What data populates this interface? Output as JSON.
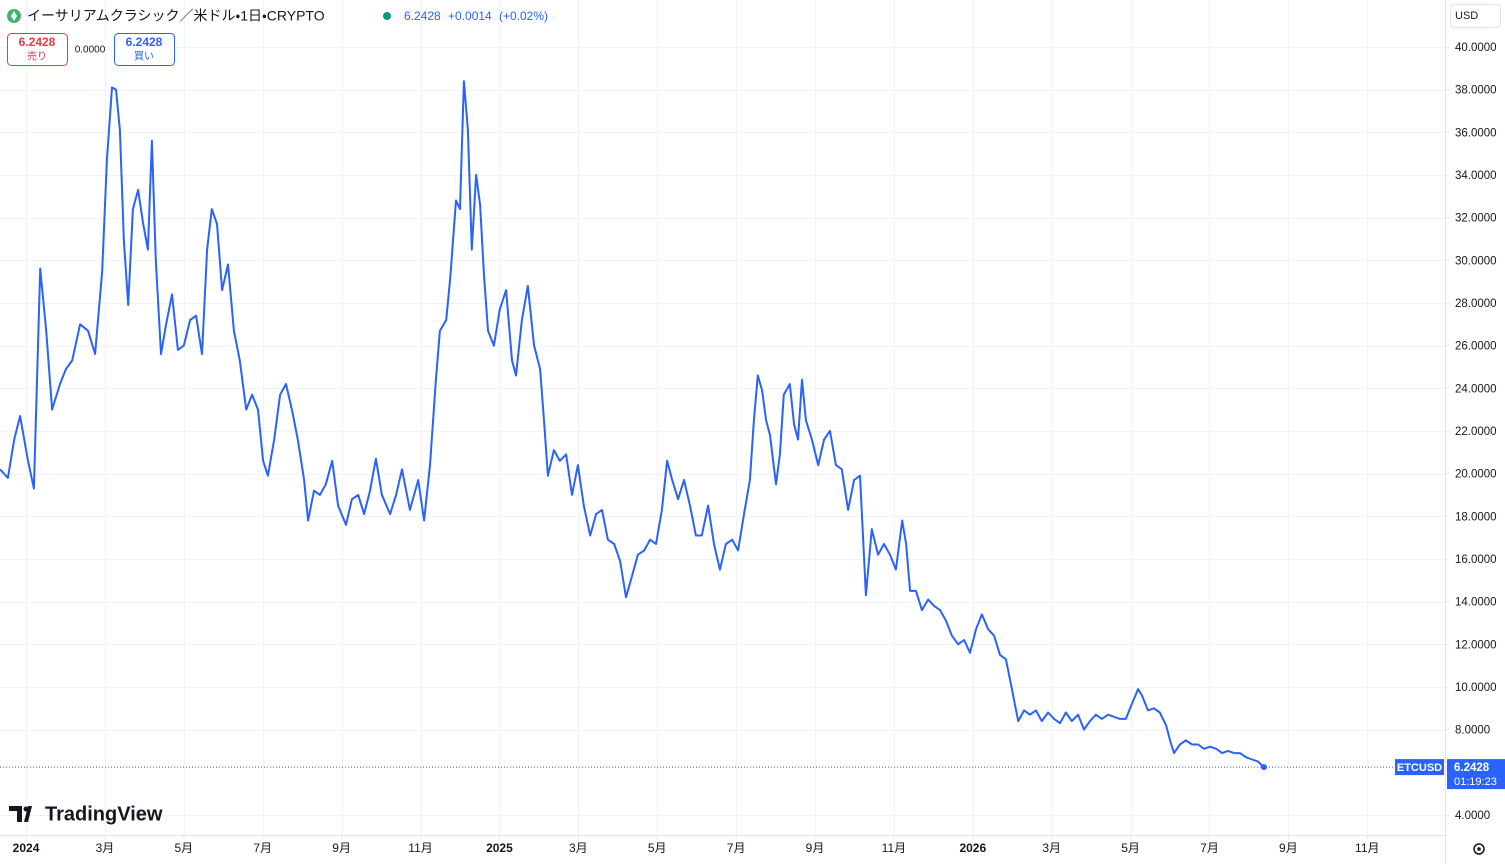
{
  "header": {
    "title": "イーサリアムクラシック／米ドル・1日・CRYPTO",
    "last": "6.2428",
    "change": "+0.0014",
    "change_pct": "(+0.02%)"
  },
  "quote": {
    "sell": {
      "price": "6.2428",
      "label": "売り"
    },
    "spread": "0.0000",
    "buy": {
      "price": "6.2428",
      "label": "買い"
    }
  },
  "currency": "USD",
  "price_tag": {
    "price": "6.2428",
    "countdown": "01:19:23"
  },
  "logo": "TradingView",
  "chart_data": {
    "type": "line",
    "xlim": [
      -0.66,
      35.97
    ],
    "ylim": [
      3.06,
      42.2
    ],
    "xticks": [
      {
        "value": 0,
        "label": "2024"
      },
      {
        "value": 2,
        "label": "3月"
      },
      {
        "value": 4,
        "label": "5月"
      },
      {
        "value": 6,
        "label": "7月"
      },
      {
        "value": 8,
        "label": "9月"
      },
      {
        "value": 10,
        "label": "11月"
      },
      {
        "value": 12,
        "label": "2025"
      },
      {
        "value": 14,
        "label": "3月"
      },
      {
        "value": 16,
        "label": "5月"
      },
      {
        "value": 18,
        "label": "7月"
      },
      {
        "value": 20,
        "label": "9月"
      },
      {
        "value": 22,
        "label": "11月"
      },
      {
        "value": 24,
        "label": "2026"
      },
      {
        "value": 26,
        "label": "3月"
      },
      {
        "value": 28,
        "label": "5月"
      },
      {
        "value": 30,
        "label": "7月"
      },
      {
        "value": 32,
        "label": "9月"
      },
      {
        "value": 34,
        "label": "11月"
      }
    ],
    "yticks": [
      {
        "value": 4,
        "label": "4.0000"
      },
      {
        "value": 8,
        "label": "8.0000"
      },
      {
        "value": 10,
        "label": "10.0000"
      },
      {
        "value": 12,
        "label": "12.0000"
      },
      {
        "value": 14,
        "label": "14.0000"
      },
      {
        "value": 16,
        "label": "16.0000"
      },
      {
        "value": 18,
        "label": "18.0000"
      },
      {
        "value": 20,
        "label": "20.0000"
      },
      {
        "value": 22,
        "label": "22.0000"
      },
      {
        "value": 24,
        "label": "24.0000"
      },
      {
        "value": 26,
        "label": "26.0000"
      },
      {
        "value": 28,
        "label": "28.0000"
      },
      {
        "value": 30,
        "label": "30.0000"
      },
      {
        "value": 32,
        "label": "32.0000"
      },
      {
        "value": 34,
        "label": "34.0000"
      },
      {
        "value": 36,
        "label": "36.0000"
      },
      {
        "value": 38,
        "label": "38.0000"
      },
      {
        "value": 40,
        "label": "40.0000"
      }
    ],
    "grid": true,
    "x": [
      -0.66,
      -0.46,
      -0.3,
      -0.15,
      0.05,
      0.2,
      0.36,
      0.51,
      0.66,
      0.86,
      1.01,
      1.17,
      1.37,
      1.57,
      1.75,
      1.93,
      2.05,
      2.18,
      2.28,
      2.38,
      2.48,
      2.59,
      2.71,
      2.84,
      2.97,
      3.09,
      3.19,
      3.29,
      3.42,
      3.55,
      3.7,
      3.85,
      4.0,
      4.16,
      4.31,
      4.46,
      4.59,
      4.71,
      4.84,
      4.97,
      5.12,
      5.27,
      5.42,
      5.58,
      5.73,
      5.88,
      6.01,
      6.13,
      6.29,
      6.44,
      6.59,
      6.74,
      6.89,
      7.05,
      7.15,
      7.3,
      7.45,
      7.6,
      7.76,
      7.91,
      8.11,
      8.26,
      8.42,
      8.57,
      8.72,
      8.87,
      9.02,
      9.23,
      9.38,
      9.53,
      9.73,
      9.94,
      10.09,
      10.24,
      10.39,
      10.49,
      10.65,
      10.75,
      10.9,
      11.0,
      11.1,
      11.2,
      11.3,
      11.41,
      11.51,
      11.61,
      11.71,
      11.86,
      12.01,
      12.17,
      12.32,
      12.42,
      12.57,
      12.72,
      12.88,
      13.03,
      13.13,
      13.23,
      13.38,
      13.53,
      13.69,
      13.84,
      13.99,
      14.14,
      14.3,
      14.45,
      14.6,
      14.75,
      14.91,
      15.06,
      15.21,
      15.36,
      15.51,
      15.67,
      15.82,
      15.97,
      16.12,
      16.25,
      16.38,
      16.53,
      16.68,
      16.83,
      16.98,
      17.13,
      17.29,
      17.44,
      17.59,
      17.74,
      17.9,
      18.05,
      18.2,
      18.35,
      18.45,
      18.55,
      18.66,
      18.76,
      18.86,
      19.01,
      19.11,
      19.21,
      19.36,
      19.47,
      19.57,
      19.67,
      19.77,
      19.92,
      20.08,
      20.23,
      20.38,
      20.53,
      20.68,
      20.84,
      20.99,
      21.14,
      21.29,
      21.44,
      21.6,
      21.75,
      21.9,
      22.05,
      22.21,
      22.31,
      22.41,
      22.56,
      22.71,
      22.87,
      23.02,
      23.17,
      23.32,
      23.47,
      23.63,
      23.78,
      23.93,
      24.08,
      24.23,
      24.39,
      24.54,
      24.69,
      24.84,
      24.99,
      25.15,
      25.3,
      25.45,
      25.6,
      25.75,
      25.91,
      26.06,
      26.21,
      26.36,
      26.51,
      26.67,
      26.82,
      26.97,
      27.12,
      27.27,
      27.43,
      27.58,
      27.73,
      27.88,
      28.03,
      28.19,
      28.29,
      28.44,
      28.59,
      28.74,
      28.9,
      29.0,
      29.1,
      29.25,
      29.4,
      29.56,
      29.71,
      29.86,
      30.01,
      30.17,
      30.32,
      30.47,
      30.62,
      30.77,
      30.93,
      31.08,
      31.23,
      31.38
    ],
    "series": [
      {
        "name": "ETCUSD",
        "color": "#2962ff",
        "values": [
          20.2,
          19.8,
          21.6,
          22.7,
          20.6,
          19.3,
          29.6,
          26.7,
          23.0,
          24.2,
          24.9,
          25.3,
          27.0,
          26.7,
          25.6,
          29.5,
          34.7,
          38.1,
          38.0,
          36.1,
          30.9,
          27.9,
          32.4,
          33.3,
          31.7,
          30.5,
          35.6,
          30.0,
          25.6,
          27.0,
          28.4,
          25.8,
          26.0,
          27.2,
          27.4,
          25.6,
          30.5,
          32.4,
          31.7,
          28.6,
          29.8,
          26.7,
          25.3,
          23.0,
          23.7,
          23.0,
          20.6,
          19.9,
          21.6,
          23.7,
          24.2,
          23.0,
          21.6,
          19.7,
          17.8,
          19.2,
          19.0,
          19.5,
          20.6,
          18.5,
          17.6,
          18.8,
          19.0,
          18.1,
          19.2,
          20.7,
          19.0,
          18.1,
          19.0,
          20.2,
          18.3,
          19.7,
          17.8,
          20.4,
          24.4,
          26.7,
          27.2,
          29.1,
          32.8,
          32.4,
          38.4,
          36.1,
          30.5,
          34.0,
          32.6,
          29.3,
          26.7,
          26.0,
          27.7,
          28.6,
          25.3,
          24.6,
          27.2,
          28.8,
          26.0,
          24.9,
          22.5,
          19.9,
          21.1,
          20.6,
          20.9,
          19.0,
          20.4,
          18.5,
          17.1,
          18.1,
          18.3,
          16.9,
          16.7,
          15.9,
          14.2,
          15.2,
          16.2,
          16.4,
          16.9,
          16.7,
          18.3,
          20.6,
          19.7,
          18.8,
          19.7,
          18.5,
          17.1,
          17.1,
          18.5,
          16.7,
          15.5,
          16.7,
          16.9,
          16.4,
          18.1,
          19.7,
          22.5,
          24.6,
          23.9,
          22.5,
          21.8,
          19.5,
          20.9,
          23.7,
          24.2,
          22.3,
          21.6,
          24.4,
          22.5,
          21.6,
          20.4,
          21.6,
          22.0,
          20.4,
          20.2,
          18.3,
          19.7,
          19.9,
          14.3,
          17.4,
          16.2,
          16.7,
          16.2,
          15.5,
          17.8,
          16.7,
          14.5,
          14.5,
          13.6,
          14.1,
          13.8,
          13.6,
          13.1,
          12.4,
          12.0,
          12.2,
          11.6,
          12.7,
          13.4,
          12.7,
          12.4,
          11.5,
          11.3,
          9.9,
          8.4,
          8.9,
          8.7,
          8.9,
          8.4,
          8.8,
          8.5,
          8.3,
          8.8,
          8.4,
          8.7,
          8.0,
          8.4,
          8.7,
          8.5,
          8.7,
          8.6,
          8.5,
          8.5,
          9.2,
          9.9,
          9.6,
          8.9,
          9.0,
          8.8,
          8.2,
          7.5,
          6.9,
          7.3,
          7.5,
          7.3,
          7.3,
          7.1,
          7.2,
          7.1,
          6.9,
          7.0,
          6.9,
          6.9,
          6.7,
          6.6,
          6.5,
          6.2428
        ]
      }
    ]
  }
}
